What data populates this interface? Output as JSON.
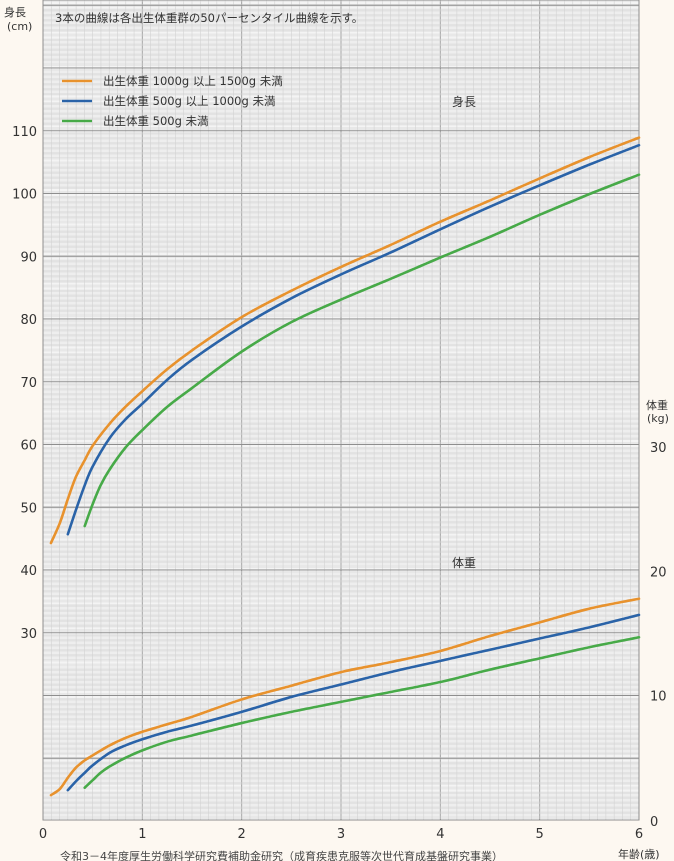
{
  "colors": {
    "orange": "#e8922d",
    "blue": "#2a63a8",
    "green": "#47aa48",
    "grid_major": "#8e8e8e",
    "grid_minor": "#d2d2d2",
    "plot_bg": "#ffffff"
  },
  "note": "3本の曲線は各出生体重群の50パーセンタイル曲線を示す。",
  "source": "令和3－4年度厚生労働科学研究費補助金研究（成育疾患克服等次世代育成基盤研究事業）",
  "height_section_label": "身長",
  "weight_section_label": "体重",
  "chart_data": {
    "type": "line",
    "title": "",
    "x_axis": {
      "label": "年齢(歳)",
      "range": [
        0,
        6
      ],
      "ticks": [
        "0",
        "1",
        "2",
        "3",
        "4",
        "5",
        "6"
      ]
    },
    "left_axis": {
      "label": "身長",
      "unit": "(cm)",
      "range": [
        10,
        120
      ],
      "ticks": [
        30,
        40,
        50,
        60,
        70,
        80,
        90,
        100,
        110
      ]
    },
    "right_axis": {
      "label": "体重",
      "unit": "(kg)",
      "range": [
        0,
        30
      ],
      "ticks": [
        0,
        10,
        20,
        30
      ]
    },
    "grid": true,
    "legend": {
      "position": "top-left",
      "entries": [
        {
          "name": "出生体重 1000g 以上 1500g 未満",
          "color": "#e8922d"
        },
        {
          "name": "出生体重 500g 以上 1000g 未満",
          "color": "#2a63a8"
        },
        {
          "name": "出生体重 500g 未満",
          "color": "#47aa48"
        }
      ]
    },
    "series": [
      {
        "name": "出生体重 1000g 以上 1500g 未満",
        "measure": "height",
        "axis": "left",
        "color": "#e8922d",
        "x": [
          0.08,
          0.17,
          0.25,
          0.33,
          0.42,
          0.5,
          0.67,
          0.83,
          1,
          1.25,
          1.5,
          2,
          2.5,
          3,
          3.5,
          4,
          4.5,
          5,
          5.5,
          6
        ],
        "y": [
          44.3,
          47.5,
          51.3,
          54.8,
          57.5,
          59.8,
          63.3,
          66,
          68.5,
          72,
          75,
          80.3,
          84.5,
          88.3,
          91.8,
          95.5,
          98.9,
          102.4,
          105.8,
          108.9
        ]
      },
      {
        "name": "出生体重 500g 以上 1000g 未満",
        "measure": "height",
        "axis": "left",
        "color": "#2a63a8",
        "x": [
          0.25,
          0.33,
          0.42,
          0.5,
          0.67,
          0.83,
          1,
          1.25,
          1.5,
          2,
          2.5,
          3,
          3.5,
          4,
          4.5,
          5,
          5.5,
          6
        ],
        "y": [
          45.7,
          49.5,
          53.5,
          56.5,
          61,
          64,
          66.5,
          70.3,
          73.5,
          78.8,
          83.3,
          87.1,
          90.6,
          94.3,
          97.9,
          101.3,
          104.6,
          107.7
        ]
      },
      {
        "name": "出生体重 500g 未満",
        "measure": "height",
        "axis": "left",
        "color": "#47aa48",
        "x": [
          0.42,
          0.5,
          0.58,
          0.67,
          0.83,
          1,
          1.25,
          1.5,
          2,
          2.5,
          3,
          3.5,
          4,
          4.5,
          5,
          5.5,
          6
        ],
        "y": [
          47,
          50.5,
          53.5,
          56,
          59.5,
          62.3,
          66,
          69,
          74.8,
          79.5,
          83.1,
          86.4,
          89.8,
          93.1,
          96.6,
          99.9,
          103
        ]
      },
      {
        "name": "出生体重 1000g 以上 1500g 未満",
        "measure": "weight",
        "axis": "right",
        "color": "#e8922d",
        "x": [
          0.08,
          0.17,
          0.25,
          0.33,
          0.42,
          0.5,
          0.67,
          0.83,
          1,
          1.25,
          1.5,
          2,
          2.5,
          3,
          3.5,
          4,
          4.5,
          5,
          5.5,
          6
        ],
        "y": [
          2,
          2.5,
          3.4,
          4.2,
          4.8,
          5.2,
          6,
          6.6,
          7.1,
          7.7,
          8.3,
          9.7,
          10.8,
          11.9,
          12.7,
          13.6,
          14.8,
          15.9,
          17,
          17.8
        ]
      },
      {
        "name": "出生体重 500g 以上 1000g 未満",
        "measure": "weight",
        "axis": "right",
        "color": "#2a63a8",
        "x": [
          0.25,
          0.33,
          0.42,
          0.5,
          0.67,
          0.83,
          1,
          1.25,
          1.5,
          2,
          2.5,
          3,
          3.5,
          4,
          4.5,
          5,
          5.5,
          6
        ],
        "y": [
          2.4,
          3.1,
          3.8,
          4.4,
          5.4,
          6,
          6.5,
          7.1,
          7.6,
          8.7,
          9.9,
          10.9,
          11.9,
          12.8,
          13.7,
          14.6,
          15.5,
          16.5
        ]
      },
      {
        "name": "出生体重 500g 未満",
        "measure": "weight",
        "axis": "right",
        "color": "#47aa48",
        "x": [
          0.42,
          0.5,
          0.58,
          0.67,
          0.83,
          1,
          1.25,
          1.5,
          2,
          2.5,
          3,
          3.5,
          4,
          4.5,
          5,
          5.5,
          6
        ],
        "y": [
          2.6,
          3.2,
          3.8,
          4.3,
          5,
          5.6,
          6.3,
          6.8,
          7.8,
          8.7,
          9.5,
          10.3,
          11.1,
          12.1,
          13,
          13.9,
          14.7
        ]
      }
    ]
  }
}
